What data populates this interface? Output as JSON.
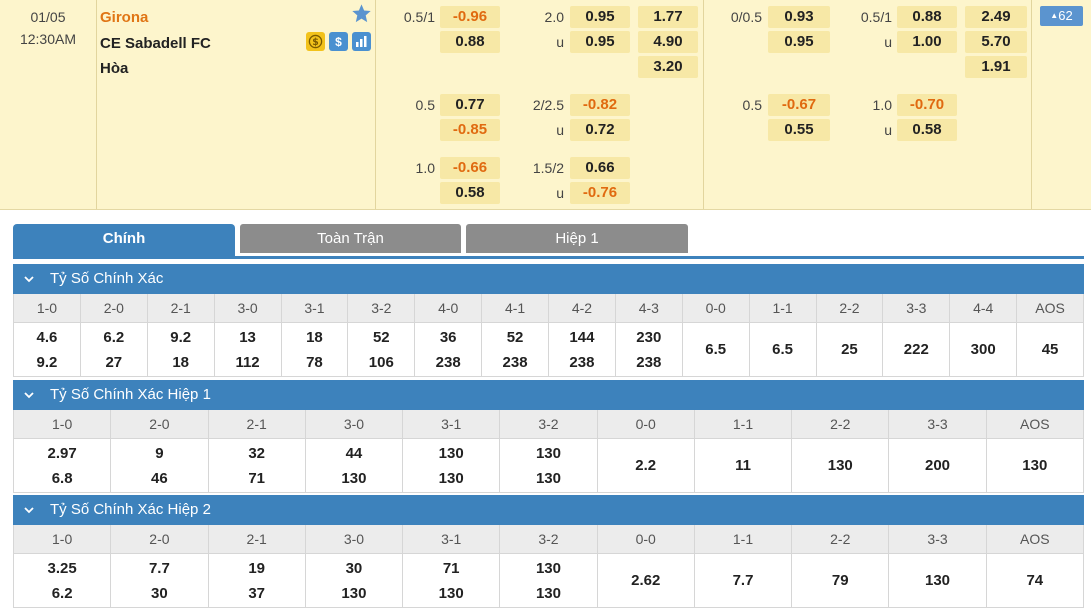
{
  "match": {
    "date": "01/05",
    "time": "12:30AM",
    "home": "Girona",
    "away": "CE Sabadell FC",
    "draw": "Hòa",
    "more_count": "62",
    "badge_icons": [
      "dollar-coin-icon",
      "dollar-icon",
      "bar-chart-icon"
    ],
    "colors": {
      "favorite": "#e07515",
      "negative": "#e06a10",
      "accent": "#3d82bc"
    }
  },
  "odds": {
    "ft_hdp_1": {
      "line": "0.5/1",
      "home": "-0.96",
      "away": "0.88"
    },
    "ft_ou_1": {
      "line": "2.0",
      "under": "u",
      "over": "0.95",
      "under_val": "0.95"
    },
    "ft_1x2": {
      "home": "1.77",
      "away": "4.90",
      "draw": "3.20"
    },
    "ft_hdp_2": {
      "line": "0.5",
      "home": "0.77",
      "away": "-0.85"
    },
    "ft_ou_2": {
      "line": "2/2.5",
      "under": "u",
      "over": "-0.82",
      "under_val": "0.72"
    },
    "ft_hdp_3": {
      "line": "1.0",
      "home": "-0.66",
      "away": "0.58"
    },
    "ft_ou_3": {
      "line": "1.5/2",
      "under": "u",
      "over": "0.66",
      "under_val": "-0.76"
    },
    "h1_hdp_1": {
      "line": "0/0.5",
      "home": "0.93",
      "away": "0.95"
    },
    "h1_ou_1": {
      "line": "0.5/1",
      "under": "u",
      "over": "0.88",
      "under_val": "1.00"
    },
    "h1_1x2": {
      "home": "2.49",
      "away": "5.70",
      "draw": "1.91"
    },
    "h1_hdp_2": {
      "line": "0.5",
      "home": "-0.67",
      "away": "0.55"
    },
    "h1_ou_2": {
      "line": "1.0",
      "under": "u",
      "over": "-0.70",
      "under_val": "0.58"
    }
  },
  "tabs": [
    "Chính",
    "Toàn Trận",
    "Hiệp 1"
  ],
  "sections": [
    {
      "title": "Tỷ Số Chính Xác",
      "columns": [
        {
          "score": "1-0",
          "a": "4.6",
          "b": "9.2"
        },
        {
          "score": "2-0",
          "a": "6.2",
          "b": "27"
        },
        {
          "score": "2-1",
          "a": "9.2",
          "b": "18"
        },
        {
          "score": "3-0",
          "a": "13",
          "b": "112"
        },
        {
          "score": "3-1",
          "a": "18",
          "b": "78"
        },
        {
          "score": "3-2",
          "a": "52",
          "b": "106"
        },
        {
          "score": "4-0",
          "a": "36",
          "b": "238"
        },
        {
          "score": "4-1",
          "a": "52",
          "b": "238"
        },
        {
          "score": "4-2",
          "a": "144",
          "b": "238"
        },
        {
          "score": "4-3",
          "a": "230",
          "b": "238"
        },
        {
          "score": "0-0",
          "a": "6.5"
        },
        {
          "score": "1-1",
          "a": "6.5"
        },
        {
          "score": "2-2",
          "a": "25"
        },
        {
          "score": "3-3",
          "a": "222"
        },
        {
          "score": "4-4",
          "a": "300"
        },
        {
          "score": "AOS",
          "a": "45"
        }
      ]
    },
    {
      "title": "Tỷ Số Chính Xác Hiệp 1",
      "columns": [
        {
          "score": "1-0",
          "a": "2.97",
          "b": "6.8"
        },
        {
          "score": "2-0",
          "a": "9",
          "b": "46"
        },
        {
          "score": "2-1",
          "a": "32",
          "b": "71"
        },
        {
          "score": "3-0",
          "a": "44",
          "b": "130"
        },
        {
          "score": "3-1",
          "a": "130",
          "b": "130"
        },
        {
          "score": "3-2",
          "a": "130",
          "b": "130"
        },
        {
          "score": "0-0",
          "a": "2.2"
        },
        {
          "score": "1-1",
          "a": "11"
        },
        {
          "score": "2-2",
          "a": "130"
        },
        {
          "score": "3-3",
          "a": "200"
        },
        {
          "score": "AOS",
          "a": "130"
        }
      ]
    },
    {
      "title": "Tỷ Số Chính Xác Hiệp 2",
      "columns": [
        {
          "score": "1-0",
          "a": "3.25",
          "b": "6.2"
        },
        {
          "score": "2-0",
          "a": "7.7",
          "b": "30"
        },
        {
          "score": "2-1",
          "a": "19",
          "b": "37"
        },
        {
          "score": "3-0",
          "a": "30",
          "b": "130"
        },
        {
          "score": "3-1",
          "a": "71",
          "b": "130"
        },
        {
          "score": "3-2",
          "a": "130",
          "b": "130"
        },
        {
          "score": "0-0",
          "a": "2.62"
        },
        {
          "score": "1-1",
          "a": "7.7"
        },
        {
          "score": "2-2",
          "a": "79"
        },
        {
          "score": "3-3",
          "a": "130"
        },
        {
          "score": "AOS",
          "a": "74"
        }
      ]
    }
  ]
}
